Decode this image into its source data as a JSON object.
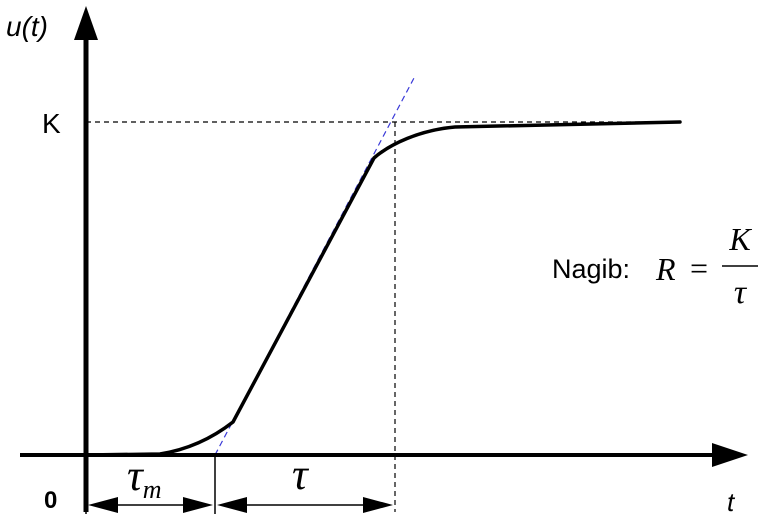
{
  "axes": {
    "y_label": "u(t)",
    "x_label": "t",
    "origin_label": "0",
    "k_label": "K"
  },
  "intervals": {
    "dead_time_symbol": "τ",
    "dead_time_subscript": "m",
    "time_constant_symbol": "τ"
  },
  "formula": {
    "prefix": "Nagib:",
    "lhs": "R",
    "equals": "=",
    "numerator": "K",
    "denominator": "τ"
  },
  "colors": {
    "curve": "#000000",
    "tangent": "#3a3ad8",
    "guides": "#000000"
  }
}
